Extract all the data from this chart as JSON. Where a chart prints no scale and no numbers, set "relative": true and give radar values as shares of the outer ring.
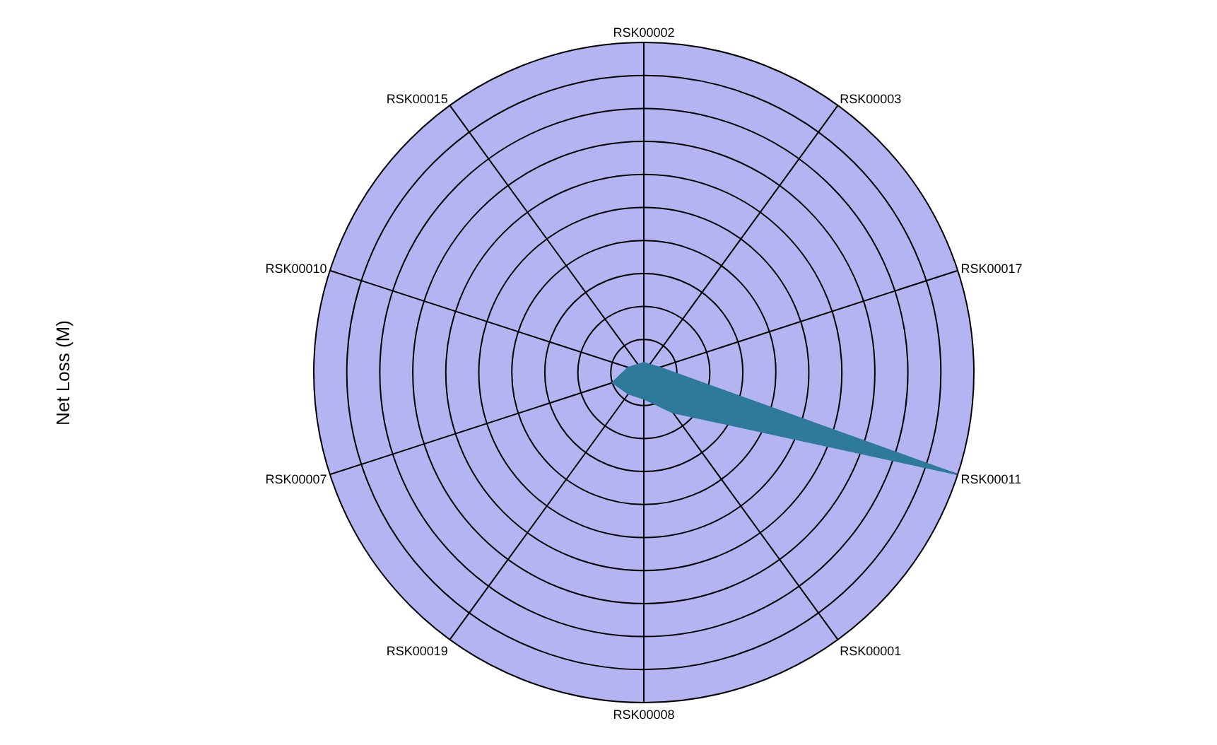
{
  "chart_data": {
    "type": "radar",
    "ylabel": "Net Loss (M)",
    "relative": true,
    "grid": true,
    "legend": false,
    "marker": "none",
    "categories": [
      "RSK00002",
      "RSK00003",
      "RSK00017",
      "RSK00011",
      "RSK00001",
      "RSK00008",
      "RSK00019",
      "RSK00007",
      "RSK00010",
      "RSK00015"
    ],
    "series": [
      {
        "color": "#2e7a9a",
        "values": [
          0.03,
          0.03,
          0.05,
          1,
          0.15,
          0.08,
          0.08,
          0.1,
          0.05,
          0.03
        ]
      }
    ]
  }
}
